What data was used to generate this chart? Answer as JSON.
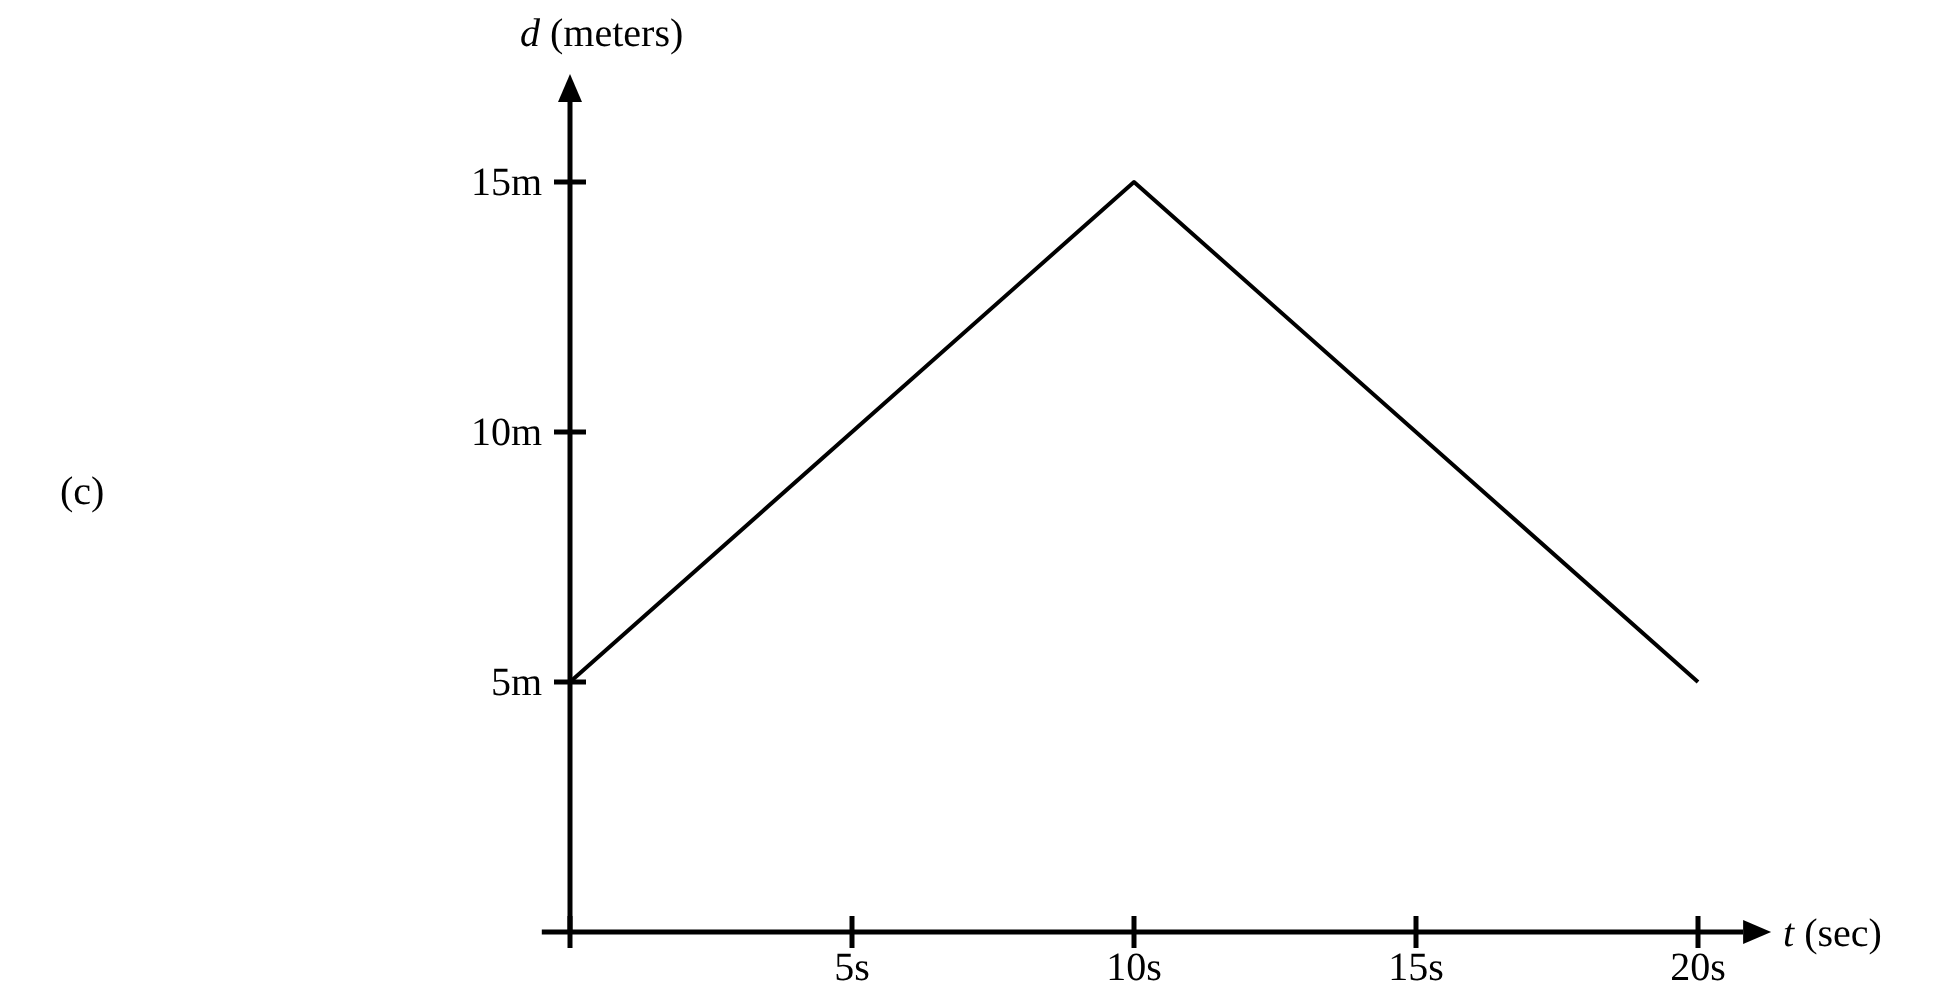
{
  "chart_data": {
    "type": "line",
    "xlabel": "t (sec)",
    "ylabel": "d (meters)",
    "x": [
      0,
      10,
      20
    ],
    "series": [
      {
        "color": "#000000",
        "values": [
          5,
          15,
          5
        ]
      }
    ],
    "xlim": [
      -0.5,
      20.8
    ],
    "ylim": [
      0,
      16.6
    ],
    "xticks": [
      {
        "value": 0,
        "label": null
      },
      {
        "value": 5,
        "label": "5s"
      },
      {
        "value": 10,
        "label": "10s"
      },
      {
        "value": 15,
        "label": "15s"
      },
      {
        "value": 20,
        "label": "20s"
      }
    ],
    "yticks": [
      {
        "value": 5,
        "label": "5m"
      },
      {
        "value": 10,
        "label": "10m"
      },
      {
        "value": 15,
        "label": "15m"
      }
    ],
    "annotations": [
      "(c)"
    ],
    "marker": "none",
    "line_style": "solid"
  }
}
